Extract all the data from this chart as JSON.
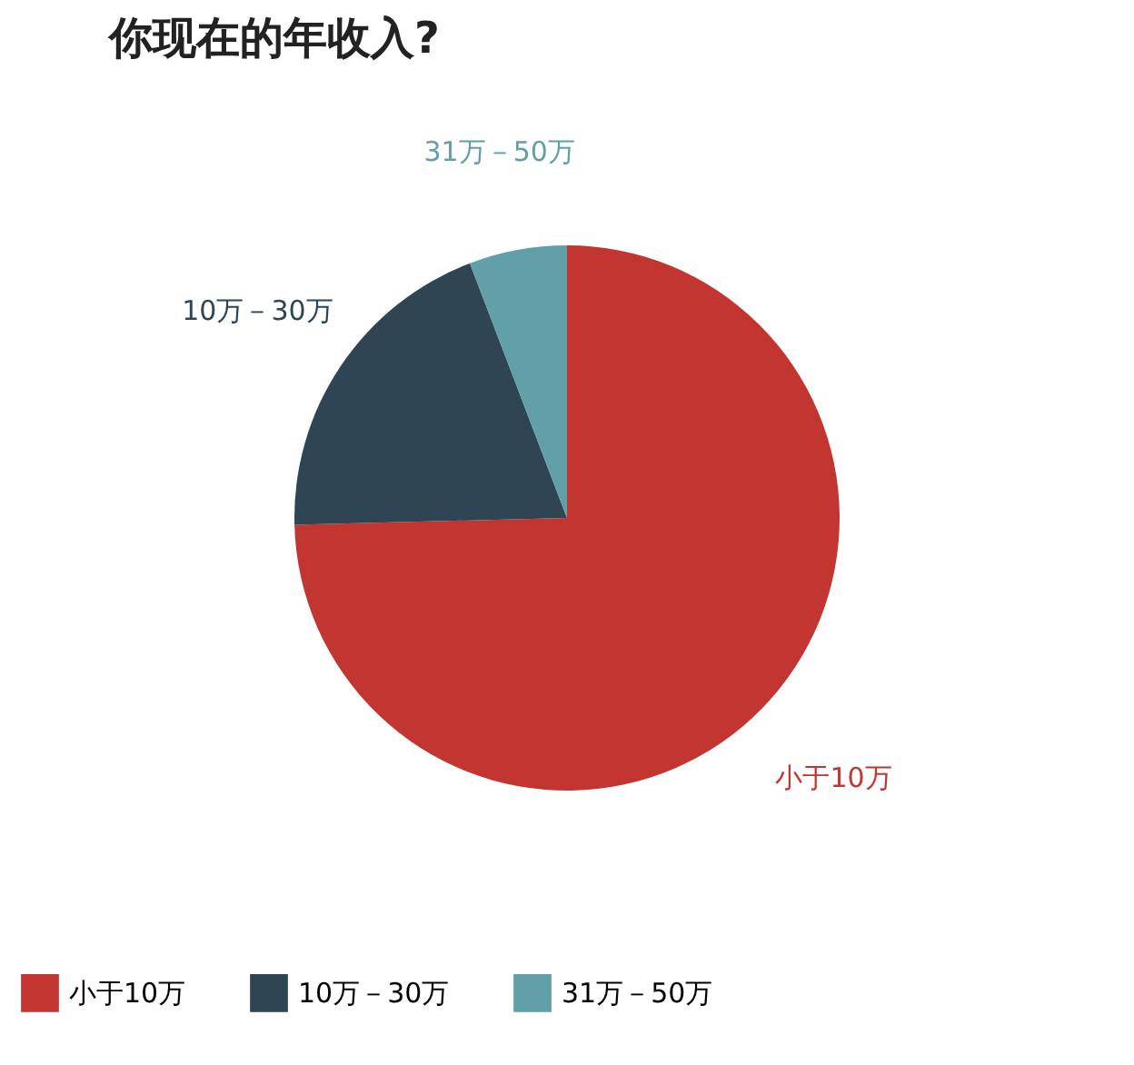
{
  "chart_data": {
    "type": "pie",
    "title": "你现在的年收入?",
    "categories": [
      "小于10万",
      "10万－30万",
      "31万－50万"
    ],
    "values": [
      74.6,
      19.6,
      5.8
    ],
    "colors": [
      "#c23531",
      "#2f4554",
      "#61a0a8"
    ],
    "legend": "bottom"
  }
}
